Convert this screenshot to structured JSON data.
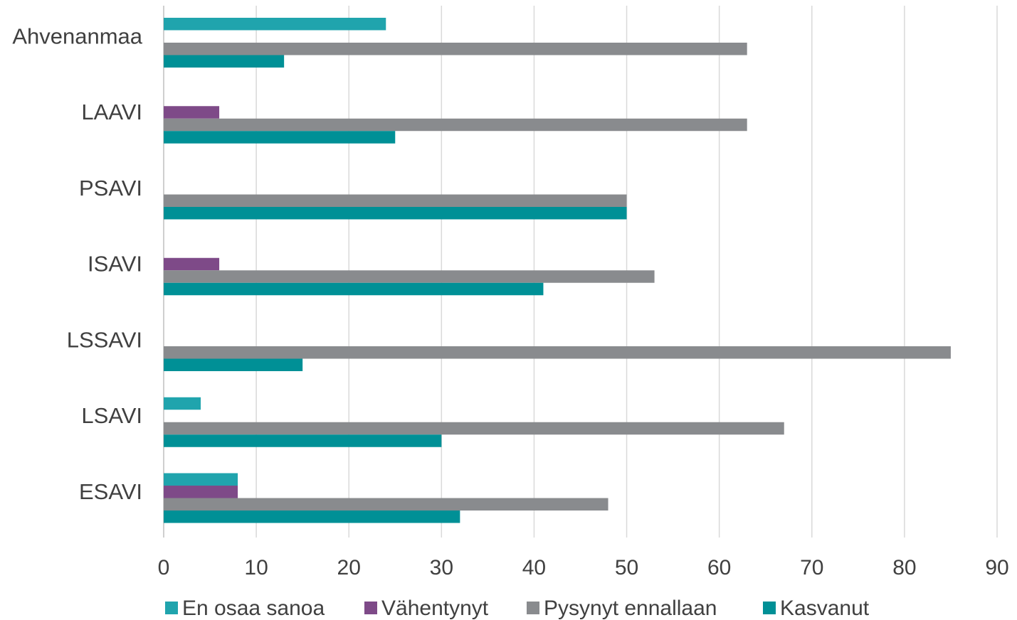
{
  "chart_data": {
    "type": "bar",
    "orientation": "horizontal",
    "categories": [
      "Ahvenanmaa",
      "LAAVI",
      "PSAVI",
      "ISAVI",
      "LSSAVI",
      "LSAVI",
      "ESAVI"
    ],
    "series": [
      {
        "name": "En osaa sanoa",
        "color": "#20a4ad",
        "values": [
          24,
          0,
          0,
          0,
          0,
          4,
          8
        ]
      },
      {
        "name": "Vähentynyt",
        "color": "#7e4a88",
        "values": [
          0,
          6,
          0,
          6,
          0,
          0,
          8
        ]
      },
      {
        "name": "Pysynyt ennallaan",
        "color": "#898b8e",
        "values": [
          63,
          63,
          50,
          53,
          85,
          67,
          48
        ]
      },
      {
        "name": "Kasvanut",
        "color": "#009096",
        "values": [
          13,
          25,
          50,
          41,
          15,
          30,
          32
        ]
      }
    ],
    "xlim": [
      0,
      90
    ],
    "xticks": [
      "0",
      "10",
      "20",
      "30",
      "40",
      "50",
      "60",
      "70",
      "80",
      "90"
    ],
    "grid": true,
    "legend": "bottom"
  }
}
